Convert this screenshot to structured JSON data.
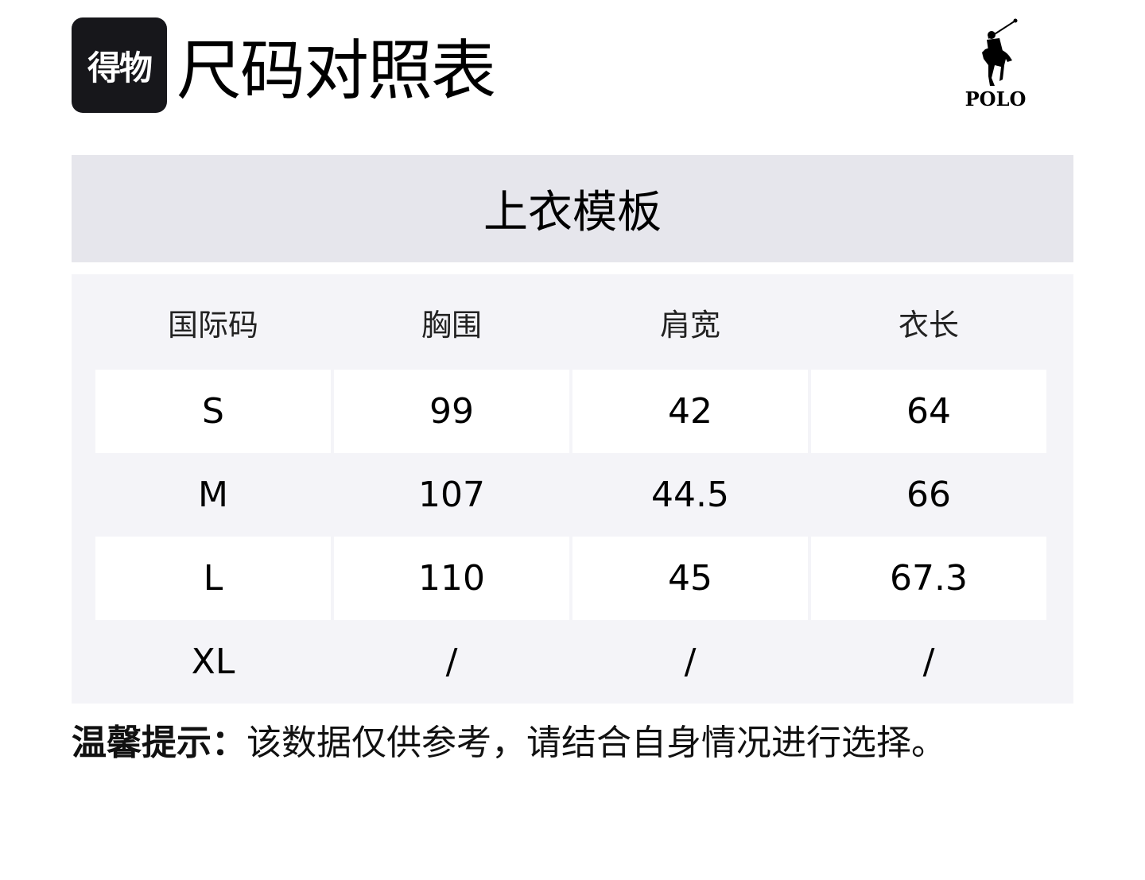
{
  "header": {
    "app_logo_text": "得物",
    "title": "尺码对照表",
    "brand_logo_text": "POLO"
  },
  "section_title": "上衣模板",
  "table": {
    "columns": [
      "国际码",
      "胸围",
      "肩宽",
      "衣长"
    ],
    "rows": [
      [
        "S",
        "99",
        "42",
        "64"
      ],
      [
        "M",
        "107",
        "44.5",
        "66"
      ],
      [
        "L",
        "110",
        "45",
        "67.3"
      ],
      [
        "XL",
        "/",
        "/",
        "/"
      ]
    ]
  },
  "note": {
    "label": "温馨提示：",
    "text": "该数据仅供参考，请结合自身情况进行选择。"
  },
  "colors": {
    "logo_bg": "#17171b",
    "band_bg": "#e6e6ec",
    "table_bg": "#f4f4f8"
  }
}
